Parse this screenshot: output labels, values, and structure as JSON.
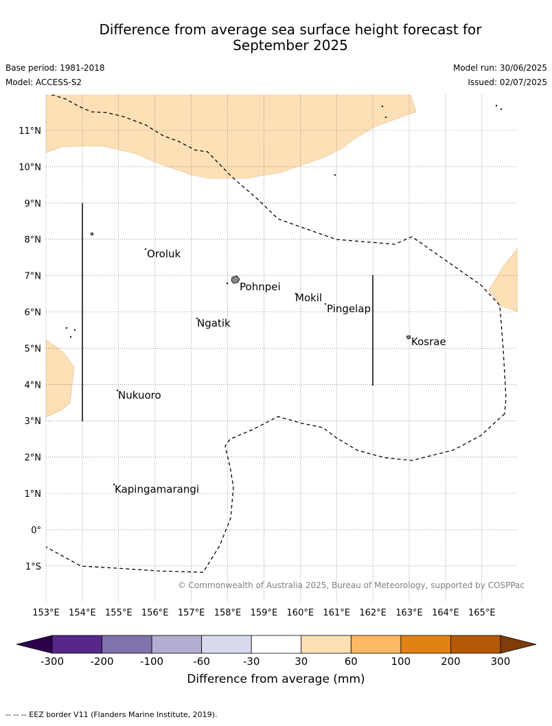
{
  "header": {
    "title_line1": "Difference from average sea surface height forecast for",
    "title_line2": "September 2025",
    "base_period": "Base period: 1981-2018",
    "model": "Model: ACCESS-S2",
    "model_run": "Model run: 30/06/2025",
    "issued": "Issued: 02/07/2025"
  },
  "map": {
    "lat_labels": [
      "11°N",
      "10°N",
      "9°N",
      "8°N",
      "7°N",
      "6°N",
      "5°N",
      "4°N",
      "3°N",
      "2°N",
      "1°N",
      "0°",
      "1°S"
    ],
    "lon_labels": [
      "153°E",
      "154°E",
      "155°E",
      "156°E",
      "157°E",
      "158°E",
      "159°E",
      "160°E",
      "161°E",
      "162°E",
      "163°E",
      "164°E",
      "165°E"
    ],
    "place_names": {
      "oroluk": "Oroluk",
      "pohnpei": "Pohnpei",
      "mokil": "Mokil",
      "pingelap": "Pingelap",
      "ngatik": "Ngatik",
      "kosrae": "Kosrae",
      "nukuoro": "Nukuoro",
      "kapingamarangi": "Kapingamarangi"
    },
    "copyright": "© Commonwealth of Australia 2025, Bureau of Meteorology, supported by COSPPac",
    "shade_color": "#fde0b6"
  },
  "colorbar": {
    "ticks": [
      "-300",
      "-200",
      "-100",
      "-60",
      "-30",
      "30",
      "60",
      "100",
      "200",
      "300"
    ],
    "colors": [
      "#542788",
      "#8073ac",
      "#b2abd2",
      "#d8daeb",
      "#ffffff",
      "#fee0b6",
      "#fdb863",
      "#e08214",
      "#b35806"
    ],
    "under_color": "#2d004b",
    "over_color": "#7f3b08",
    "label": "Difference from average (mm)"
  },
  "footnote": "--  --  -- EEZ border V11 (Flanders Marine Institute, 2019)."
}
